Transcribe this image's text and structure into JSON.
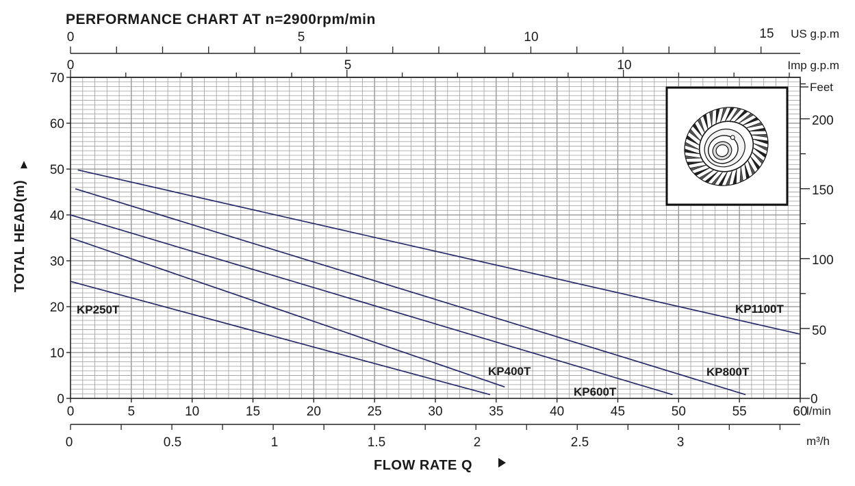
{
  "chart_data": {
    "type": "line",
    "title": "PERFORMANCE CHART AT n=2900rpm/min",
    "xlabel": "FLOW RATE Q",
    "ylabel": "TOTAL HEAD(m)",
    "grid": true,
    "x_axis": {
      "unit": "l/min",
      "range": [
        0,
        60
      ],
      "ticks": [
        "0",
        "5",
        "10",
        "15",
        "20",
        "25",
        "30",
        "35",
        "40",
        "45",
        "50",
        "55",
        "60"
      ]
    },
    "x_axis_m3h": {
      "unit": "m³/h",
      "ticks": [
        "0",
        "0.5",
        "1",
        "1.5",
        "2",
        "2.5",
        "3"
      ]
    },
    "x_axis_imp": {
      "unit": "Imp g.p.m",
      "ticks": [
        "0",
        "5",
        "10"
      ]
    },
    "x_axis_us": {
      "unit": "US g.p.m",
      "ticks": [
        "0",
        "5",
        "10",
        "15"
      ]
    },
    "y_axis": {
      "unit": "m",
      "range": [
        0,
        70
      ],
      "ticks": [
        "0",
        "10",
        "20",
        "30",
        "40",
        "50",
        "60",
        "70"
      ]
    },
    "y_axis_feet": {
      "unit": "Feet",
      "ticks": [
        "0",
        "50",
        "100",
        "150",
        "200"
      ]
    },
    "series": [
      {
        "name": "KP250T",
        "x": [
          0,
          34.5
        ],
        "y": [
          25.5,
          0.8
        ]
      },
      {
        "name": "KP400T",
        "x": [
          0,
          35.7
        ],
        "y": [
          35,
          2.5
        ]
      },
      {
        "name": "KP600T",
        "x": [
          0,
          49.5
        ],
        "y": [
          40,
          0.8
        ]
      },
      {
        "name": "KP800T",
        "x": [
          0.4,
          55.5
        ],
        "y": [
          45.7,
          0.8
        ]
      },
      {
        "name": "KP1100T",
        "x": [
          0.6,
          60
        ],
        "y": [
          49.8,
          14
        ]
      }
    ],
    "series_label_text": [
      "KP250T",
      "KP400T",
      "KP600T",
      "KP800T",
      "KP1100T"
    ]
  },
  "colors": {
    "curve": "#252a6b",
    "grid": "#a8a8a8",
    "axis": "#222222"
  },
  "inset": {
    "icon": "impeller-icon"
  }
}
